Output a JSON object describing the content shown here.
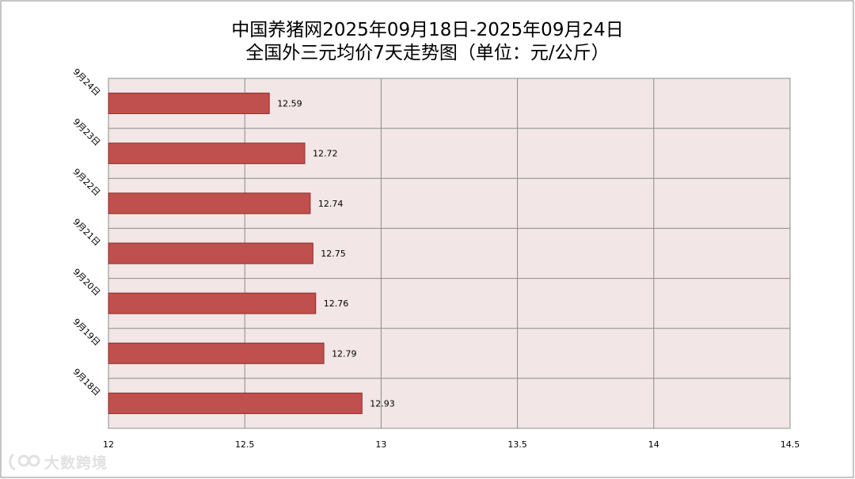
{
  "chart_data": {
    "type": "bar",
    "orientation": "horizontal",
    "title_line1": "中国养猪网2025年09月18日-2025年09月24日",
    "title_line2": "全国外三元均价7天走势图（单位：元/公斤）",
    "categories": [
      "9月24日",
      "9月23日",
      "9月22日",
      "9月21日",
      "9月20日",
      "9月19日",
      "9月18日"
    ],
    "values": [
      12.59,
      12.72,
      12.74,
      12.75,
      12.76,
      12.79,
      12.93
    ],
    "data_labels": [
      "12.59",
      "12.72",
      "12.74",
      "12.75",
      "12.76",
      "12.79",
      "12.93"
    ],
    "x_ticks": [
      "12",
      "12.5",
      "13",
      "13.5",
      "14",
      "14.5"
    ],
    "xlim": [
      12,
      14.5
    ],
    "grid": true,
    "legend": "none",
    "bar_color": "#c0504d",
    "plot_background": "#f2e6e6"
  },
  "watermark": {
    "text": "大数跨境"
  }
}
